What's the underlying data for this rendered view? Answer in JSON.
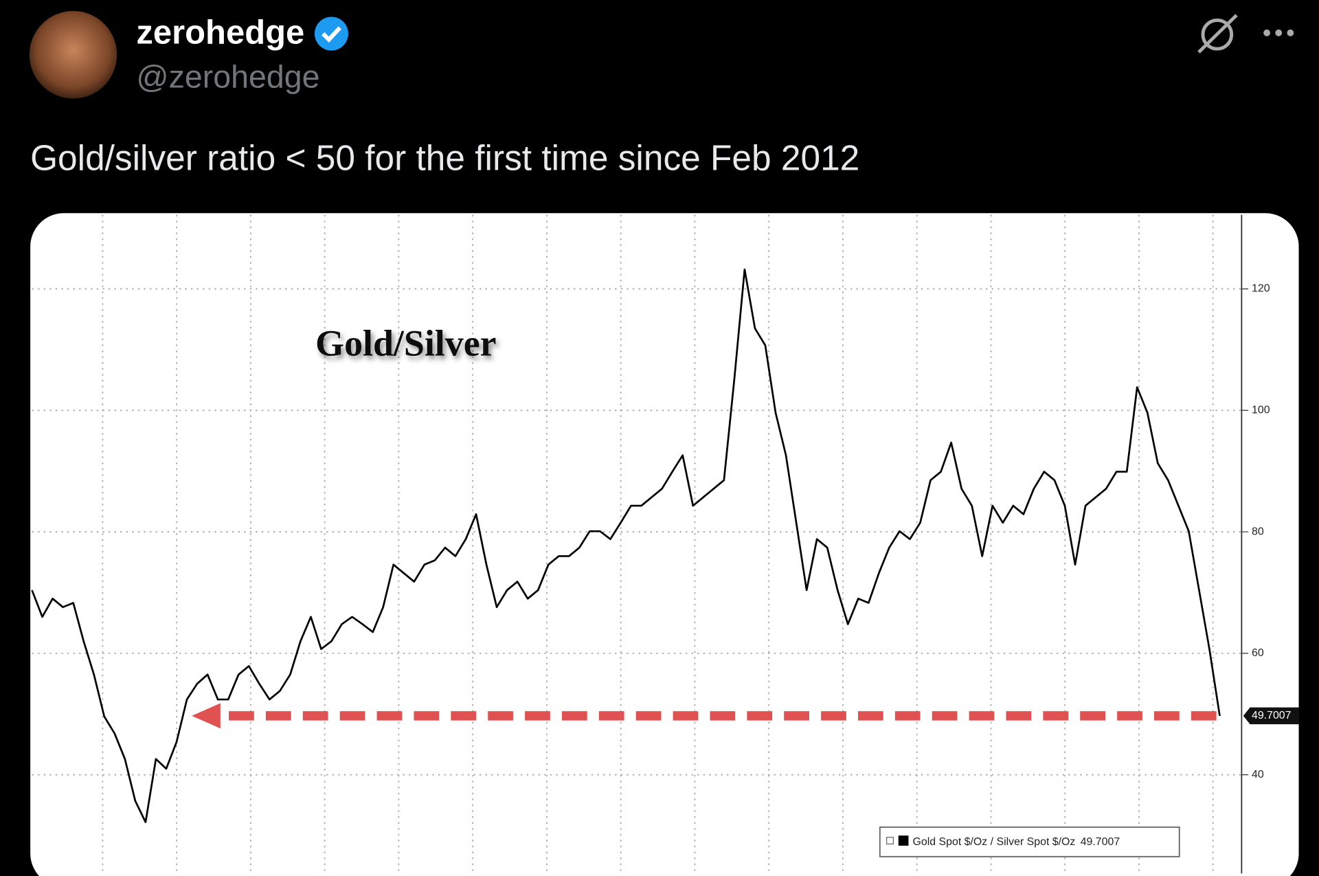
{
  "tweet": {
    "author_name": "zerohedge",
    "handle": "@zerohedge",
    "text": "Gold/silver ratio < 50 for the first time since Feb 2012"
  },
  "chart_data": {
    "type": "line",
    "title": "Gold/Silver",
    "series": [
      {
        "name": "Gold Spot $/Oz / Silver Spot $/Oz",
        "color": "#000000",
        "values": [
          70.4,
          66,
          69,
          67.6,
          68.3,
          62,
          56.5,
          49.6,
          46.8,
          42.6,
          35.7,
          32.2,
          42.6,
          41,
          45.4,
          52.4,
          55,
          56.5,
          52.4,
          52.4,
          56.5,
          57.9,
          55,
          52.4,
          53.8,
          56.5,
          62,
          66,
          60.7,
          62,
          64.8,
          66,
          64.8,
          63.5,
          67.6,
          74.6,
          73.2,
          71.8,
          74.6,
          75.3,
          77.4,
          76,
          78.8,
          82.9,
          74.6,
          67.6,
          70.4,
          71.8,
          69,
          70.4,
          74.6,
          76,
          76,
          77.4,
          80.1,
          80.1,
          78.8,
          81.5,
          84.3,
          84.3,
          85.7,
          87.1,
          89.9,
          92.6,
          84.3,
          85.7,
          87.1,
          88.5,
          105.1,
          123.2,
          113.5,
          110.7,
          99.6,
          92.6,
          81.5,
          70.4,
          78.8,
          77.4,
          70.4,
          64.8,
          69,
          68.3,
          73.2,
          77.4,
          80.1,
          78.8,
          81.5,
          88.5,
          89.9,
          94.7,
          87.1,
          84.3,
          76,
          84.3,
          81.5,
          84.3,
          82.9,
          87.1,
          89.9,
          88.5,
          84.3,
          74.6,
          84.3,
          85.7,
          87.1,
          89.9,
          89.9,
          103.8,
          99.6,
          91.3,
          88.5,
          84.3,
          80.1,
          70.4,
          60.7,
          49.7007
        ]
      }
    ],
    "ylim": [
      23.75,
      132.2
    ],
    "yticks": [
      40,
      60,
      80,
      100,
      120
    ],
    "grid": true
  }
}
